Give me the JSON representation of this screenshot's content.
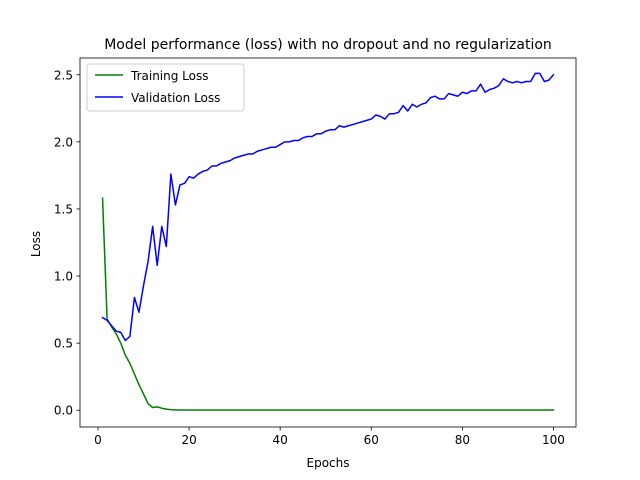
{
  "chart_data": {
    "type": "line",
    "title": "Model performance (loss) with no dropout and no regularization",
    "xlabel": "Epochs",
    "ylabel": "Loss",
    "xlim": [
      -3.95,
      104.95
    ],
    "ylim": [
      -0.125,
      2.625
    ],
    "xticks": [
      0,
      20,
      40,
      60,
      80,
      100
    ],
    "yticks": [
      0.0,
      0.5,
      1.0,
      1.5,
      2.0,
      2.5
    ],
    "xtick_labels": [
      "0",
      "20",
      "40",
      "60",
      "80",
      "100"
    ],
    "ytick_labels": [
      "0.0",
      "0.5",
      "1.0",
      "1.5",
      "2.0",
      "2.5"
    ],
    "grid": false,
    "legend_position": "top-left",
    "x": [
      1,
      2,
      3,
      4,
      5,
      6,
      7,
      8,
      9,
      10,
      11,
      12,
      13,
      14,
      15,
      16,
      17,
      18,
      19,
      20,
      21,
      22,
      23,
      24,
      25,
      26,
      27,
      28,
      29,
      30,
      31,
      32,
      33,
      34,
      35,
      36,
      37,
      38,
      39,
      40,
      41,
      42,
      43,
      44,
      45,
      46,
      47,
      48,
      49,
      50,
      51,
      52,
      53,
      54,
      55,
      56,
      57,
      58,
      59,
      60,
      61,
      62,
      63,
      64,
      65,
      66,
      67,
      68,
      69,
      70,
      71,
      72,
      73,
      74,
      75,
      76,
      77,
      78,
      79,
      80,
      81,
      82,
      83,
      84,
      85,
      86,
      87,
      88,
      89,
      90,
      91,
      92,
      93,
      94,
      95,
      96,
      97,
      98,
      99,
      100
    ],
    "series": [
      {
        "name": "Training Loss",
        "color": "#008000",
        "values": [
          1.58,
          0.68,
          0.62,
          0.57,
          0.5,
          0.41,
          0.35,
          0.27,
          0.19,
          0.12,
          0.05,
          0.02,
          0.025,
          0.015,
          0.008,
          0.004,
          0.003,
          0.002,
          0.002,
          0.002,
          0.002,
          0.002,
          0.002,
          0.002,
          0.002,
          0.002,
          0.002,
          0.002,
          0.002,
          0.002,
          0.002,
          0.002,
          0.002,
          0.002,
          0.002,
          0.002,
          0.002,
          0.002,
          0.002,
          0.002,
          0.002,
          0.002,
          0.002,
          0.002,
          0.002,
          0.002,
          0.002,
          0.002,
          0.002,
          0.002,
          0.002,
          0.002,
          0.002,
          0.002,
          0.002,
          0.002,
          0.002,
          0.002,
          0.002,
          0.002,
          0.002,
          0.002,
          0.002,
          0.002,
          0.002,
          0.002,
          0.002,
          0.002,
          0.002,
          0.002,
          0.002,
          0.002,
          0.002,
          0.002,
          0.002,
          0.002,
          0.002,
          0.002,
          0.002,
          0.002,
          0.002,
          0.002,
          0.002,
          0.002,
          0.002,
          0.002,
          0.002,
          0.002,
          0.002,
          0.002,
          0.002,
          0.002,
          0.002,
          0.002,
          0.002,
          0.002,
          0.002,
          0.002,
          0.002,
          0.002
        ]
      },
      {
        "name": "Validation Loss",
        "color": "#0000ff",
        "values": [
          0.69,
          0.67,
          0.63,
          0.59,
          0.58,
          0.52,
          0.55,
          0.84,
          0.73,
          0.93,
          1.11,
          1.37,
          1.08,
          1.37,
          1.22,
          1.76,
          1.53,
          1.68,
          1.69,
          1.74,
          1.73,
          1.76,
          1.78,
          1.79,
          1.82,
          1.82,
          1.84,
          1.85,
          1.86,
          1.88,
          1.89,
          1.9,
          1.91,
          1.91,
          1.93,
          1.94,
          1.95,
          1.96,
          1.96,
          1.98,
          2.0,
          2.0,
          2.01,
          2.01,
          2.03,
          2.04,
          2.04,
          2.06,
          2.06,
          2.08,
          2.09,
          2.09,
          2.12,
          2.11,
          2.12,
          2.13,
          2.14,
          2.15,
          2.16,
          2.17,
          2.2,
          2.19,
          2.17,
          2.21,
          2.21,
          2.22,
          2.27,
          2.23,
          2.28,
          2.26,
          2.28,
          2.29,
          2.33,
          2.34,
          2.32,
          2.32,
          2.36,
          2.35,
          2.34,
          2.37,
          2.36,
          2.38,
          2.38,
          2.43,
          2.37,
          2.39,
          2.4,
          2.42,
          2.47,
          2.45,
          2.44,
          2.45,
          2.44,
          2.45,
          2.45,
          2.51,
          2.51,
          2.45,
          2.46,
          2.5
        ]
      }
    ]
  }
}
